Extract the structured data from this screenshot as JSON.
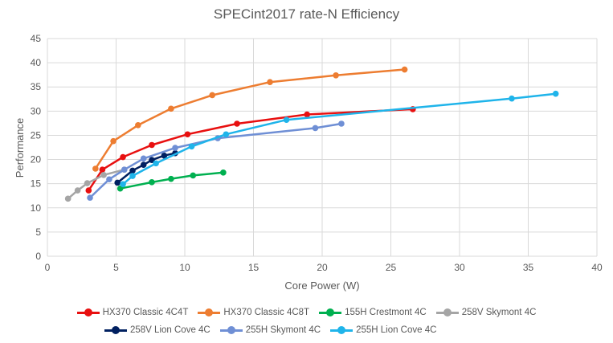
{
  "chart_data": {
    "type": "line",
    "title": "SPECint2017 rate-N Efficiency",
    "xlabel": "Core Power (W)",
    "ylabel": "Performance",
    "xlim": [
      0,
      40
    ],
    "ylim": [
      0,
      45
    ],
    "xticks": [
      0,
      5,
      10,
      15,
      20,
      25,
      30,
      35,
      40
    ],
    "yticks": [
      0,
      5,
      10,
      15,
      20,
      25,
      30,
      35,
      40,
      45
    ],
    "grid": true,
    "legend_position": "bottom",
    "series": [
      {
        "name": "HX370 Classic 4C4T",
        "color": "#e81010",
        "x": [
          3.0,
          4.0,
          5.5,
          7.6,
          10.2,
          13.8,
          18.9,
          26.6
        ],
        "y": [
          13.6,
          17.9,
          20.5,
          23.0,
          25.2,
          27.4,
          29.3,
          30.4
        ]
      },
      {
        "name": "HX370 Classic 4C8T",
        "color": "#ed7d31",
        "x": [
          3.5,
          4.8,
          6.6,
          9.0,
          12.0,
          16.2,
          21.0,
          26.0
        ],
        "y": [
          18.1,
          23.8,
          27.1,
          30.5,
          33.3,
          36.0,
          37.4,
          38.6
        ]
      },
      {
        "name": "155H Crestmont 4C",
        "color": "#00b050",
        "x": [
          5.3,
          7.6,
          9.0,
          10.6,
          12.8
        ],
        "y": [
          14.0,
          15.3,
          16.0,
          16.7,
          17.3
        ]
      },
      {
        "name": "258V Skymont 4C",
        "color": "#a5a5a5",
        "x": [
          1.5,
          2.2,
          2.9,
          4.1,
          5.6
        ],
        "y": [
          11.9,
          13.6,
          15.1,
          16.8,
          17.9
        ]
      },
      {
        "name": "258V Lion Cove 4C",
        "color": "#002060",
        "x": [
          5.1,
          6.2,
          7.0,
          7.6,
          8.5,
          9.3
        ],
        "y": [
          15.2,
          17.7,
          18.9,
          19.9,
          20.8,
          21.3
        ]
      },
      {
        "name": "255H Skymont 4C",
        "color": "#6f8fd5",
        "x": [
          3.1,
          4.5,
          5.6,
          7.0,
          9.3,
          12.4,
          19.5,
          21.4
        ],
        "y": [
          12.1,
          15.9,
          17.9,
          20.2,
          22.4,
          24.4,
          26.5,
          27.4
        ]
      },
      {
        "name": "255H Lion Cove 4C",
        "color": "#1fb4ea",
        "x": [
          5.5,
          6.2,
          7.9,
          10.5,
          13.0,
          17.4,
          33.8,
          37.0
        ],
        "y": [
          14.9,
          16.6,
          19.2,
          22.7,
          25.2,
          28.2,
          32.6,
          33.6
        ]
      }
    ]
  }
}
